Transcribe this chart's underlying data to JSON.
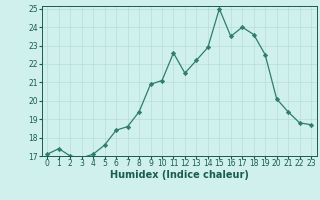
{
  "x": [
    0,
    1,
    2,
    3,
    4,
    5,
    6,
    7,
    8,
    9,
    10,
    11,
    12,
    13,
    14,
    15,
    16,
    17,
    18,
    19,
    20,
    21,
    22,
    23
  ],
  "y": [
    17.1,
    17.4,
    17.0,
    16.9,
    17.1,
    17.6,
    18.4,
    18.6,
    19.4,
    20.9,
    21.1,
    22.6,
    21.5,
    22.2,
    22.9,
    25.0,
    23.5,
    24.0,
    23.6,
    22.5,
    20.1,
    19.4,
    18.8,
    18.7
  ],
  "line_color": "#2e7d6e",
  "marker": "D",
  "marker_size": 2.2,
  "bg_color": "#cff0ec",
  "grid_color": "#b8ddd8",
  "xlabel": "Humidex (Indice chaleur)",
  "ylim": [
    17,
    25
  ],
  "xlim": [
    -0.5,
    23.5
  ],
  "yticks": [
    17,
    18,
    19,
    20,
    21,
    22,
    23,
    24,
    25
  ],
  "xticks": [
    0,
    1,
    2,
    3,
    4,
    5,
    6,
    7,
    8,
    9,
    10,
    11,
    12,
    13,
    14,
    15,
    16,
    17,
    18,
    19,
    20,
    21,
    22,
    23
  ],
  "tick_fontsize": 5.5,
  "xlabel_fontsize": 7.0,
  "label_color": "#1a5c50",
  "line_width": 0.9
}
